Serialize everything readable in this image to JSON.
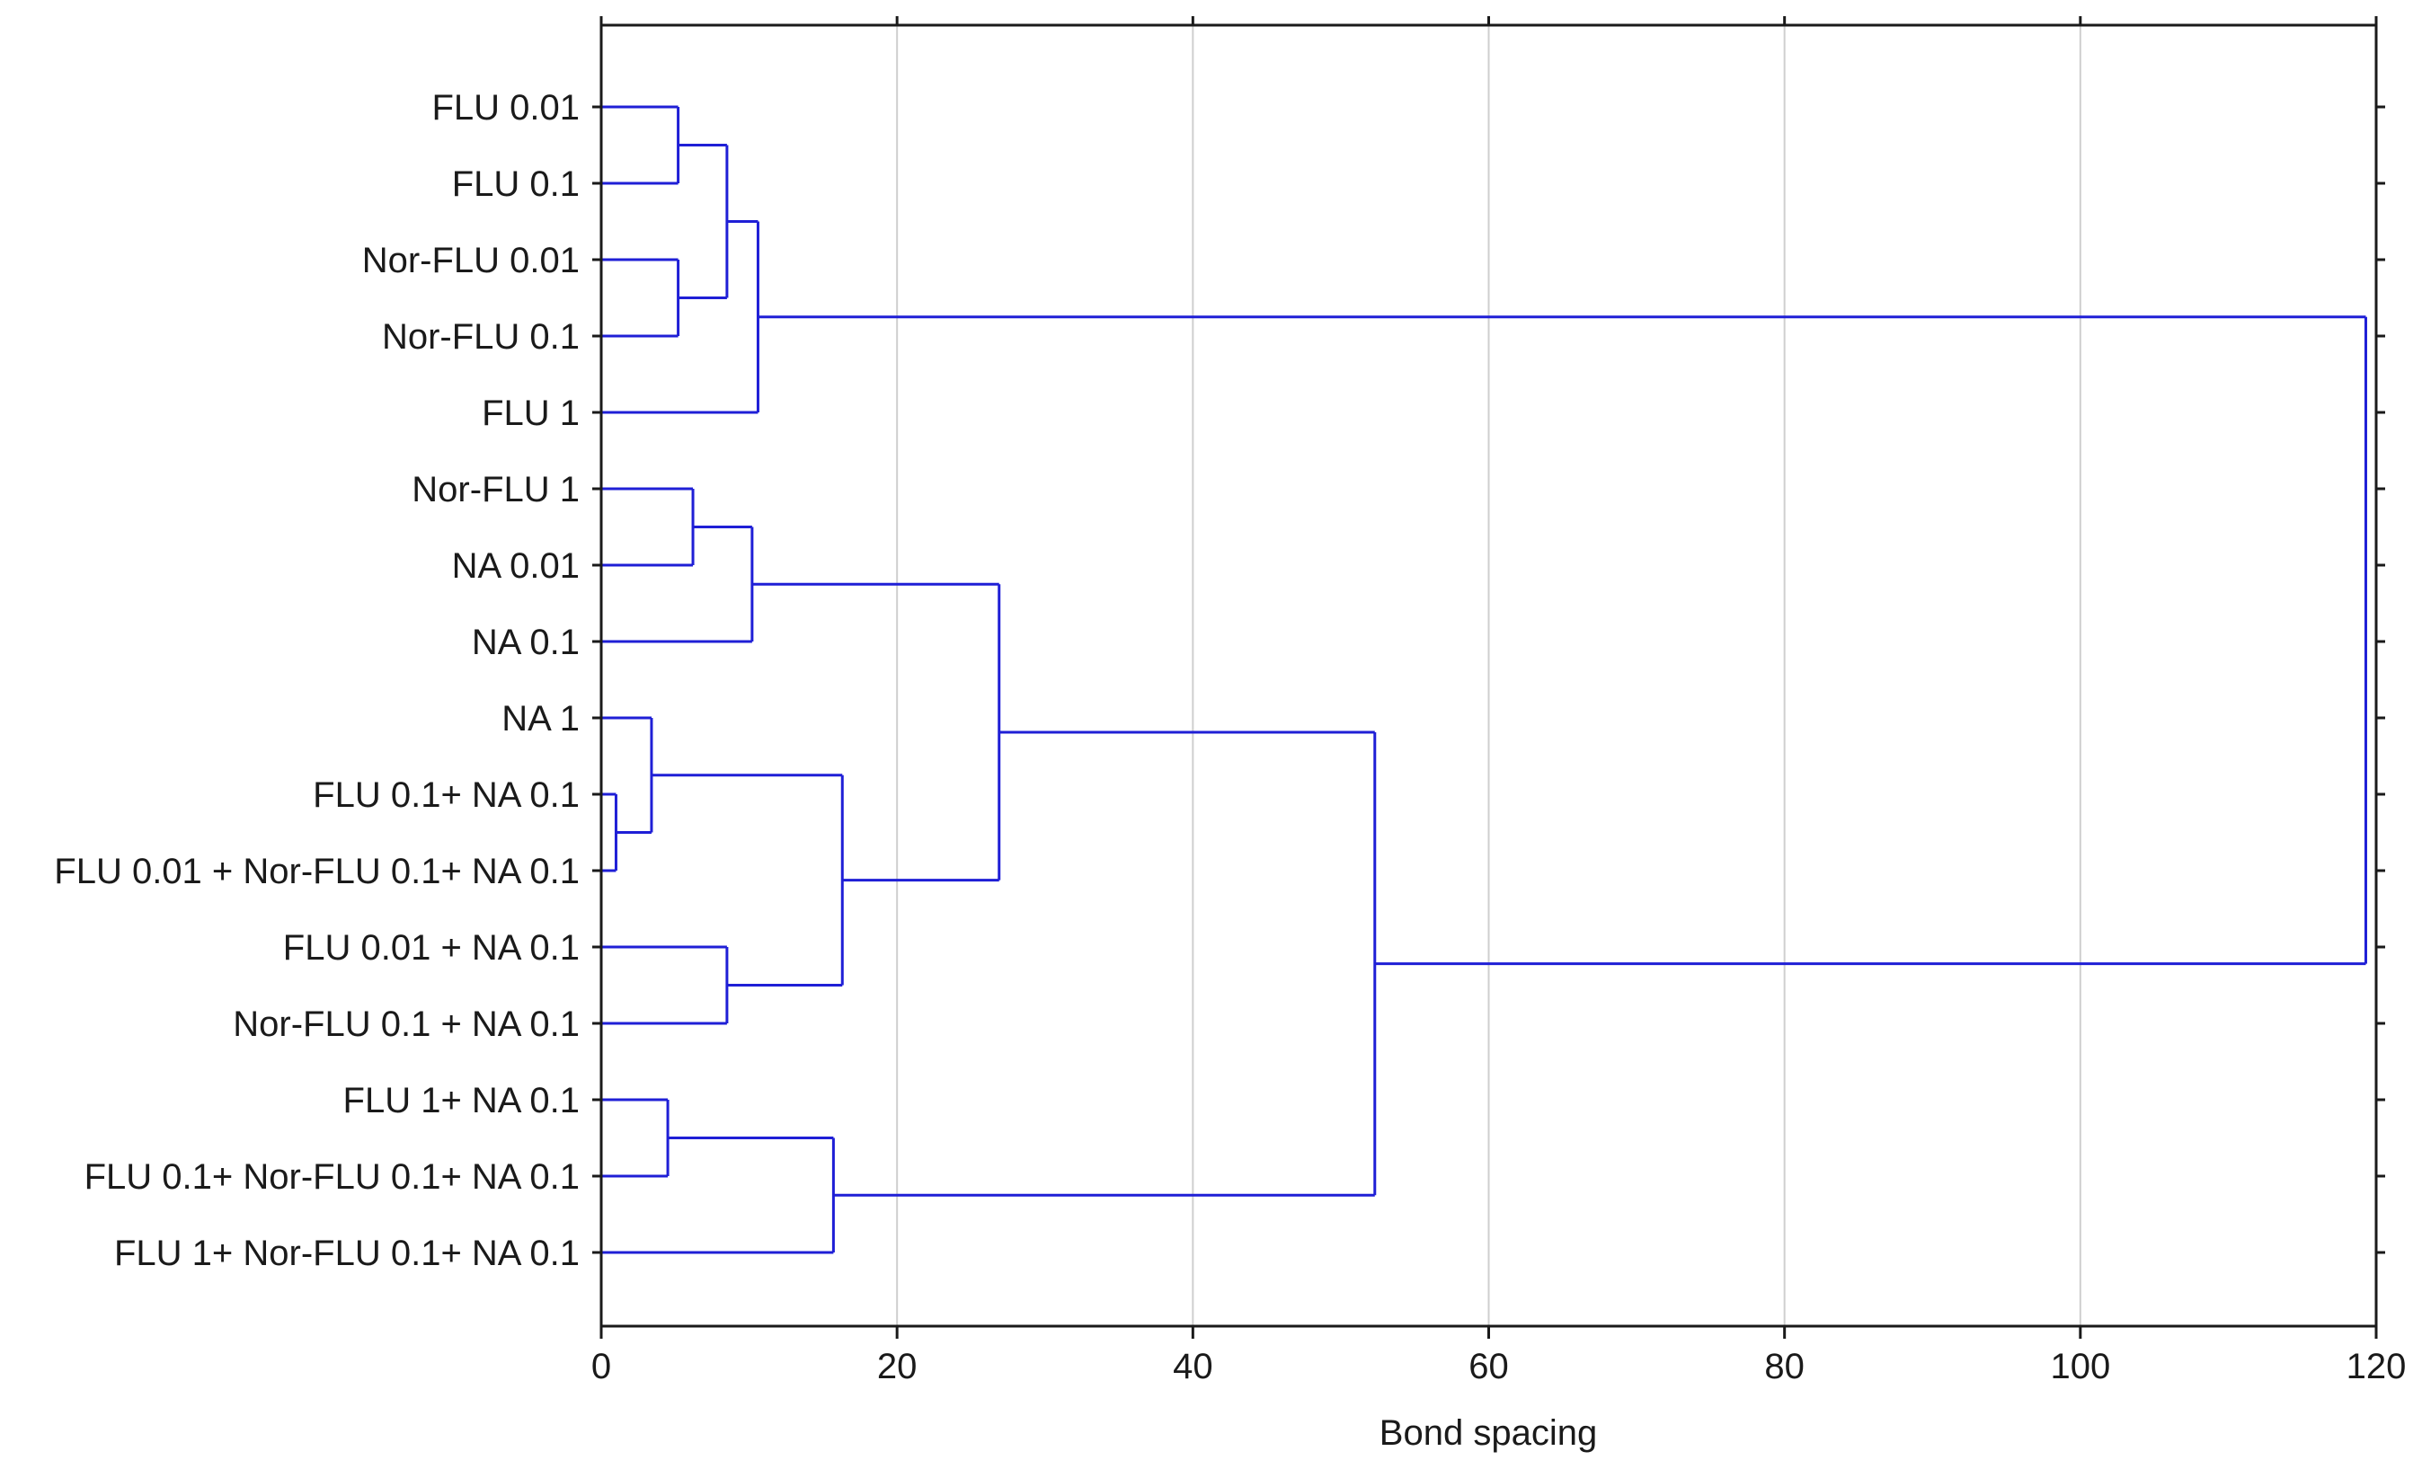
{
  "chart_data": {
    "type": "dendrogram",
    "title": "",
    "xlabel": "Bond spacing",
    "ylabel": "",
    "xlim": [
      0,
      120
    ],
    "x_ticks": [
      0,
      20,
      40,
      60,
      80,
      100,
      120
    ],
    "x_tick_labels": [
      "0",
      "20",
      "40",
      "60",
      "80",
      "100",
      "120"
    ],
    "grid": "vertical",
    "line_color": "#1f1fd6",
    "grid_color": "#cfcfcf",
    "leaves": [
      "FLU 0.01",
      "FLU 0.1",
      "Nor-FLU 0.01",
      "Nor-FLU 0.1",
      "FLU 1",
      "Nor-FLU 1",
      "NA 0.01",
      "NA 0.1",
      "NA 1",
      "FLU 0.1+ NA 0.1",
      "FLU 0.01 + Nor-FLU 0.1+ NA 0.1",
      "FLU 0.01 + NA 0.1",
      "Nor-FLU 0.1 + NA 0.1",
      "FLU 1+ NA 0.1",
      "FLU 0.1+ Nor-FLU 0.1+ NA 0.1",
      "FLU 1+ Nor-FLU 0.1+ NA 0.1"
    ],
    "merges": [
      {
        "id": "m1",
        "a": "L0",
        "b": "L1",
        "height": 5.2
      },
      {
        "id": "m2",
        "a": "L2",
        "b": "L3",
        "height": 5.2
      },
      {
        "id": "m3",
        "a": "m1",
        "b": "m2",
        "height": 8.5
      },
      {
        "id": "m4",
        "a": "m3",
        "b": "L4",
        "height": 10.6
      },
      {
        "id": "m5",
        "a": "L5",
        "b": "L6",
        "height": 6.2
      },
      {
        "id": "m6",
        "a": "m5",
        "b": "L7",
        "height": 10.2
      },
      {
        "id": "m7",
        "a": "L9",
        "b": "L10",
        "height": 1.0
      },
      {
        "id": "m8",
        "a": "L8",
        "b": "m7",
        "height": 3.4
      },
      {
        "id": "m9",
        "a": "L11",
        "b": "L12",
        "height": 8.5
      },
      {
        "id": "m10",
        "a": "m8",
        "b": "m9",
        "height": 16.3
      },
      {
        "id": "m11",
        "a": "m6",
        "b": "m10",
        "height": 26.9
      },
      {
        "id": "m12",
        "a": "L13",
        "b": "L14",
        "height": 4.5
      },
      {
        "id": "m13",
        "a": "m12",
        "b": "L15",
        "height": 15.7
      },
      {
        "id": "m14",
        "a": "m11",
        "b": "m13",
        "height": 52.3
      },
      {
        "id": "m15",
        "a": "m4",
        "b": "m14",
        "height": 119.3
      }
    ]
  }
}
